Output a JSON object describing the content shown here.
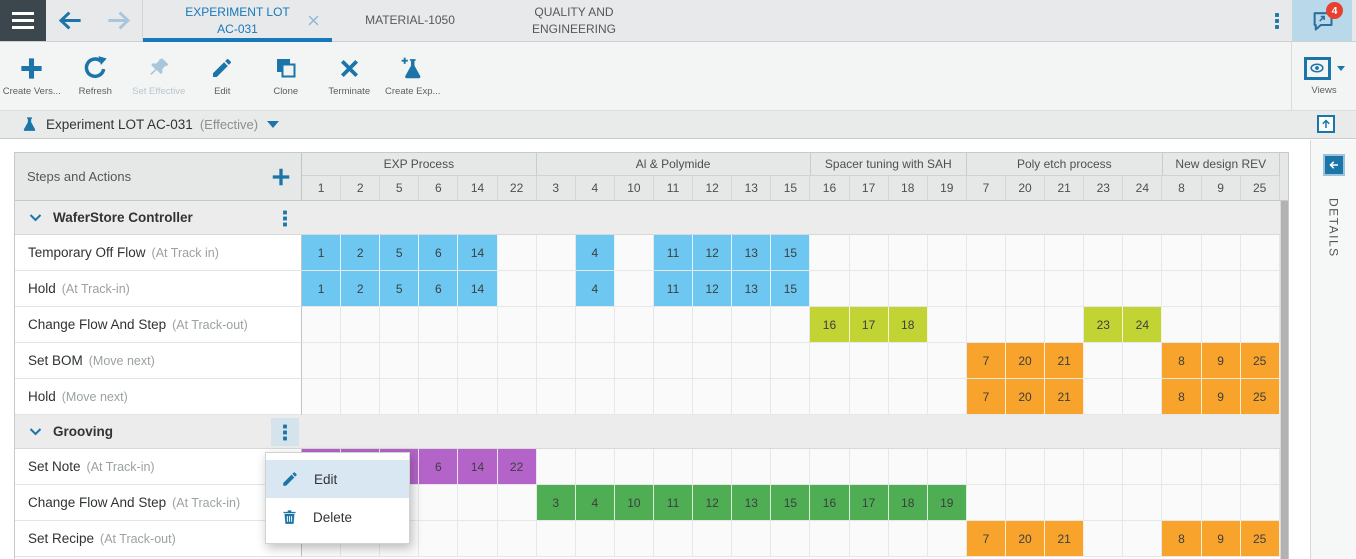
{
  "topbar": {
    "tabs": [
      {
        "label": "EXPERIMENT LOT AC-031",
        "active": true,
        "closable": true
      },
      {
        "label": "MATERIAL-1050",
        "active": false
      },
      {
        "label": "QUALITY AND ENGINEERING",
        "active": false
      }
    ],
    "notification_count": "4"
  },
  "toolbar": {
    "buttons": [
      {
        "label": "Create Vers...",
        "icon": "plus",
        "enabled": true
      },
      {
        "label": "Refresh",
        "icon": "refresh",
        "enabled": true
      },
      {
        "label": "Set Effective",
        "icon": "pin",
        "enabled": false
      },
      {
        "label": "Edit",
        "icon": "pencil",
        "enabled": true
      },
      {
        "label": "Clone",
        "icon": "clone",
        "enabled": true
      },
      {
        "label": "Terminate",
        "icon": "x",
        "enabled": true
      },
      {
        "label": "Create Exp...",
        "icon": "flask-plus",
        "enabled": true
      }
    ],
    "views_label": "Views"
  },
  "titlebar": {
    "title": "Experiment LOT AC-031",
    "status": "(Effective)"
  },
  "grid": {
    "panel_header": "Steps and Actions",
    "column_groups": [
      {
        "label": "EXP Process",
        "columns": [
          "1",
          "2",
          "5",
          "6",
          "14",
          "22"
        ]
      },
      {
        "label": "Al & Polymide",
        "columns": [
          "3",
          "4",
          "10",
          "11",
          "12",
          "13",
          "15"
        ]
      },
      {
        "label": "Spacer tuning with SAH",
        "columns": [
          "16",
          "17",
          "18",
          "19"
        ]
      },
      {
        "label": "Poly etch process",
        "columns": [
          "7",
          "20",
          "21",
          "23",
          "24"
        ]
      },
      {
        "label": "New design REV",
        "columns": [
          "8",
          "9",
          "25"
        ]
      }
    ],
    "groups": [
      {
        "name": "WaferStore Controller",
        "menu_open": false,
        "rows": [
          {
            "action": "Temporary Off Flow",
            "trigger": "(At Track in)",
            "color": "blue",
            "cells": [
              "1",
              "2",
              "5",
              "6",
              "14",
              "4",
              "11",
              "12",
              "13",
              "15"
            ]
          },
          {
            "action": "Hold",
            "trigger": "(At Track-in)",
            "color": "blue",
            "cells": [
              "1",
              "2",
              "5",
              "6",
              "14",
              "4",
              "11",
              "12",
              "13",
              "15"
            ]
          },
          {
            "action": "Change Flow And Step",
            "trigger": "(At Track-out)",
            "color": "yellowgreen",
            "cells": [
              "16",
              "17",
              "18",
              "23",
              "24"
            ]
          },
          {
            "action": "Set BOM",
            "trigger": "(Move next)",
            "color": "orange",
            "cells": [
              "7",
              "20",
              "21",
              "8",
              "9",
              "25"
            ]
          },
          {
            "action": "Hold",
            "trigger": "(Move next)",
            "color": "orange",
            "cells": [
              "7",
              "20",
              "21",
              "8",
              "9",
              "25"
            ]
          }
        ]
      },
      {
        "name": "Grooving",
        "menu_open": true,
        "rows": [
          {
            "action": "Set Note",
            "trigger": "(At Track-in)",
            "color": "purple",
            "cells": [
              "1",
              "2",
              "5",
              "6",
              "14",
              "22"
            ]
          },
          {
            "action": "Change Flow And Step",
            "trigger": "(At Track-in)",
            "color": "green",
            "cells": [
              "3",
              "4",
              "10",
              "11",
              "12",
              "13",
              "15",
              "16",
              "17",
              "18",
              "19"
            ]
          },
          {
            "action": "Set Recipe",
            "trigger": "(At Track-out)",
            "color": "orange",
            "cells": [
              "7",
              "20",
              "21",
              "8",
              "9",
              "25"
            ]
          }
        ]
      }
    ],
    "colors": {
      "blue": "#6EC7F0",
      "green": "#4FAE54",
      "orange": "#F7A32C",
      "yellowgreen": "#C2D334",
      "purple": "#B464C8"
    }
  },
  "context_menu": {
    "items": [
      {
        "label": "Edit",
        "icon": "pencil",
        "highlighted": true
      },
      {
        "label": "Delete",
        "icon": "trash",
        "highlighted": false
      }
    ]
  },
  "details_panel": {
    "label": "DETAILS"
  },
  "accent_color": "#1B75A8"
}
